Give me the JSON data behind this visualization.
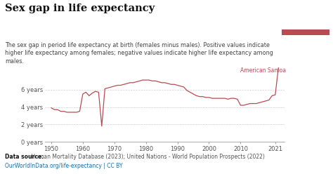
{
  "title": "Sex gap in life expectancy",
  "subtitle": "The sex gap in period life expectancy at birth (females minus males). Positive values indicate\nhigher life expectancy among females; negative values indicate higher life expectancy among\nmales.",
  "footer_bold": "Data source:",
  "footer_rest": " Human Mortality Database (2023); United Nations - World Population Prospects (2022)\nOurWorldInData.org/life-expectancy | CC BY",
  "annotation": "American Samoa",
  "annotation_color": "#b84c52",
  "line_color": "#b84c52",
  "bg_color": "#ffffff",
  "plot_bg": "#ffffff",
  "grid_color": "#d0d0d0",
  "title_color": "#111111",
  "subtitle_color": "#444444",
  "ylim": [
    0,
    8.8
  ],
  "yticks": [
    0,
    2,
    4,
    6
  ],
  "ytick_labels": [
    "0 years",
    "2 years",
    "4 years",
    "6 years"
  ],
  "xlim": [
    1948,
    2024
  ],
  "xticks": [
    1950,
    1960,
    1970,
    1980,
    1990,
    2000,
    2010,
    2021
  ],
  "owid_box_color": "#1a3a5c",
  "owid_box_red": "#b84c52",
  "years": [
    1950,
    1951,
    1952,
    1953,
    1954,
    1955,
    1956,
    1957,
    1958,
    1959,
    1960,
    1961,
    1962,
    1963,
    1964,
    1965,
    1966,
    1967,
    1968,
    1969,
    1970,
    1971,
    1972,
    1973,
    1974,
    1975,
    1976,
    1977,
    1978,
    1979,
    1980,
    1981,
    1982,
    1983,
    1984,
    1985,
    1986,
    1987,
    1988,
    1989,
    1990,
    1991,
    1992,
    1993,
    1994,
    1995,
    1996,
    1997,
    1998,
    1999,
    2000,
    2001,
    2002,
    2003,
    2004,
    2005,
    2006,
    2007,
    2008,
    2009,
    2010,
    2011,
    2012,
    2013,
    2014,
    2015,
    2016,
    2017,
    2018,
    2019,
    2020,
    2021,
    2022
  ],
  "values": [
    3.9,
    3.7,
    3.7,
    3.5,
    3.5,
    3.4,
    3.4,
    3.4,
    3.4,
    3.5,
    5.5,
    5.7,
    5.3,
    5.6,
    5.8,
    5.7,
    1.8,
    6.1,
    6.2,
    6.3,
    6.4,
    6.5,
    6.5,
    6.6,
    6.7,
    6.8,
    6.8,
    6.9,
    7.0,
    7.1,
    7.1,
    7.1,
    7.0,
    7.0,
    6.9,
    6.8,
    6.8,
    6.7,
    6.6,
    6.6,
    6.5,
    6.4,
    6.3,
    5.9,
    5.7,
    5.5,
    5.3,
    5.2,
    5.2,
    5.1,
    5.1,
    5.0,
    5.0,
    5.0,
    5.0,
    5.0,
    4.9,
    5.0,
    5.0,
    4.9,
    4.2,
    4.2,
    4.3,
    4.4,
    4.4,
    4.4,
    4.5,
    4.6,
    4.7,
    4.8,
    5.3,
    5.4,
    8.5
  ]
}
